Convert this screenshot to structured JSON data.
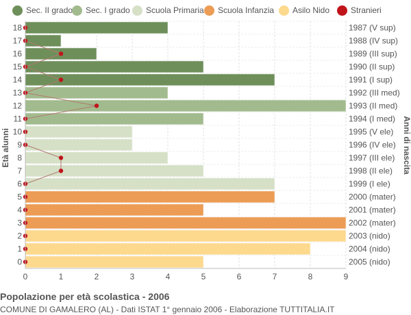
{
  "legend": [
    {
      "label": "Sec. II grado",
      "color": "#6e8f5a"
    },
    {
      "label": "Sec. I grado",
      "color": "#a2bb8e"
    },
    {
      "label": "Scuola Primaria",
      "color": "#d5e0c6"
    },
    {
      "label": "Scuola Infanzia",
      "color": "#ec9c54"
    },
    {
      "label": "Asilo Nido",
      "color": "#fdd98e"
    },
    {
      "label": "Stranieri",
      "color": "#c0141b"
    }
  ],
  "footer": {
    "title": "Popolazione per età scolastica - 2006",
    "subtitle": "COMUNE DI GAMALERO (AL) - Dati ISTAT 1° gennaio 2006 - Elaborazione TUTTITALIA.IT"
  },
  "chart_data": {
    "type": "bar",
    "orientation": "horizontal",
    "ylabel": "Età alunni",
    "ylabel_right": "Anni di nascita",
    "xlim": [
      0,
      9
    ],
    "x_ticks": [
      0,
      1,
      2,
      3,
      4,
      5,
      6,
      7,
      8,
      9
    ],
    "grid": true,
    "legend_position": "top",
    "rows": [
      {
        "age": "18",
        "year": "1987 (V sup)",
        "value": 4,
        "stranieri": 0,
        "group": "Sec. II grado"
      },
      {
        "age": "17",
        "year": "1988 (IV sup)",
        "value": 1,
        "stranieri": 0,
        "group": "Sec. II grado"
      },
      {
        "age": "16",
        "year": "1989 (III sup)",
        "value": 2,
        "stranieri": 1,
        "group": "Sec. II grado"
      },
      {
        "age": "15",
        "year": "1990 (II sup)",
        "value": 5,
        "stranieri": 0,
        "group": "Sec. II grado"
      },
      {
        "age": "14",
        "year": "1991 (I sup)",
        "value": 7,
        "stranieri": 1,
        "group": "Sec. II grado"
      },
      {
        "age": "13",
        "year": "1992 (III med)",
        "value": 4,
        "stranieri": 0,
        "group": "Sec. I grado"
      },
      {
        "age": "12",
        "year": "1993 (II med)",
        "value": 9,
        "stranieri": 2,
        "group": "Sec. I grado"
      },
      {
        "age": "11",
        "year": "1994 (I med)",
        "value": 5,
        "stranieri": 0,
        "group": "Sec. I grado"
      },
      {
        "age": "10",
        "year": "1995 (V ele)",
        "value": 3,
        "stranieri": 0,
        "group": "Scuola Primaria"
      },
      {
        "age": "9",
        "year": "1996 (IV ele)",
        "value": 3,
        "stranieri": 0,
        "group": "Scuola Primaria"
      },
      {
        "age": "8",
        "year": "1997 (III ele)",
        "value": 4,
        "stranieri": 1,
        "group": "Scuola Primaria"
      },
      {
        "age": "7",
        "year": "1998 (II ele)",
        "value": 5,
        "stranieri": 1,
        "group": "Scuola Primaria"
      },
      {
        "age": "6",
        "year": "1999 (I ele)",
        "value": 7,
        "stranieri": 0,
        "group": "Scuola Primaria"
      },
      {
        "age": "5",
        "year": "2000 (mater)",
        "value": 7,
        "stranieri": 0,
        "group": "Scuola Infanzia"
      },
      {
        "age": "4",
        "year": "2001 (mater)",
        "value": 5,
        "stranieri": 0,
        "group": "Scuola Infanzia"
      },
      {
        "age": "3",
        "year": "2002 (mater)",
        "value": 9,
        "stranieri": 0,
        "group": "Scuola Infanzia"
      },
      {
        "age": "2",
        "year": "2003 (nido)",
        "value": 9,
        "stranieri": 0,
        "group": "Asilo Nido"
      },
      {
        "age": "1",
        "year": "2004 (nido)",
        "value": 8,
        "stranieri": 0,
        "group": "Asilo Nido"
      },
      {
        "age": "0",
        "year": "2005 (nido)",
        "value": 5,
        "stranieri": 0,
        "group": "Asilo Nido"
      }
    ]
  }
}
